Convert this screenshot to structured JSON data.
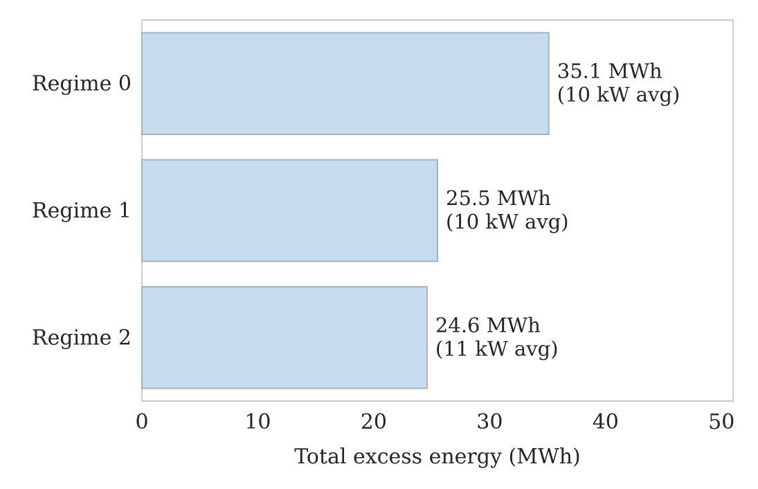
{
  "chart_data": {
    "type": "bar",
    "orientation": "horizontal",
    "categories": [
      "Regime 0",
      "Regime 1",
      "Regime 2"
    ],
    "values": [
      35.1,
      25.5,
      24.6
    ],
    "data_labels": [
      [
        "35.1 MWh",
        "(10 kW avg)"
      ],
      [
        "25.5 MWh",
        "(10 kW avg)"
      ],
      [
        "24.6 MWh",
        "(11 kW avg)"
      ]
    ],
    "title": "",
    "xlabel": "Total excess energy (MWh)",
    "ylabel": "",
    "xlim": [
      0,
      51
    ],
    "xticks": [
      0,
      10,
      20,
      30,
      40,
      50
    ],
    "grid": false,
    "colors": {
      "bar_fill": "#c6dbed",
      "bar_edge": "#a8b2bb",
      "frame": "#cccccc",
      "text": "#262626"
    }
  }
}
